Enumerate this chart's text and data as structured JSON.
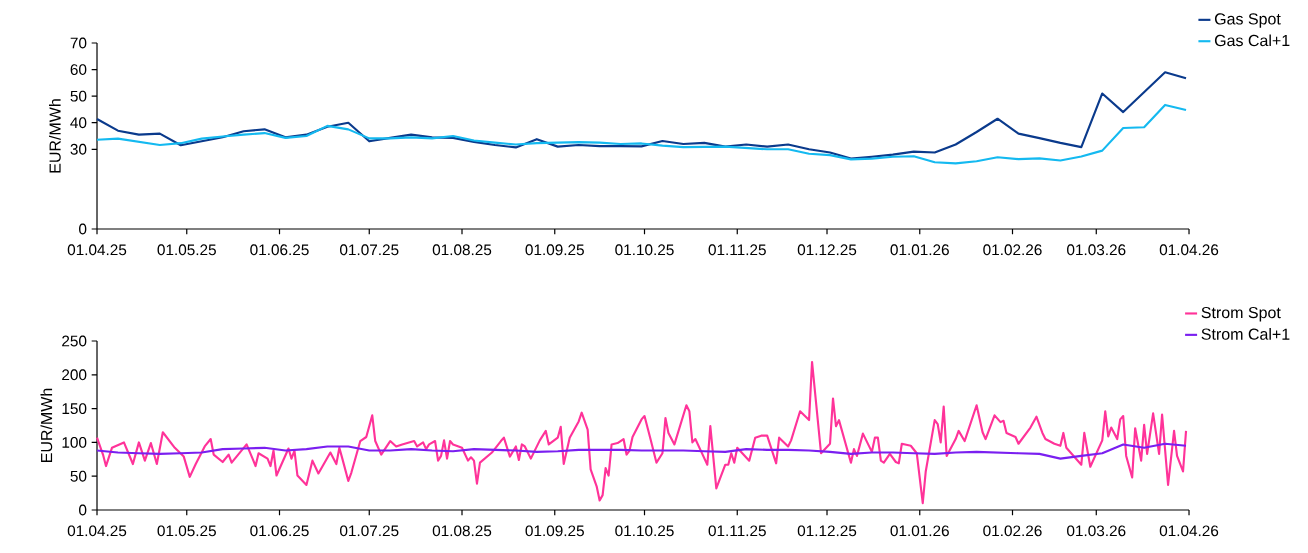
{
  "chart_data": [
    {
      "type": "line",
      "ylabel": "EUR/MWh",
      "legend": "top right",
      "xlim": [
        "2025-04-01",
        "2026-04-01"
      ],
      "xticks": [
        {
          "value": "2025-04-01",
          "label": "01.04.25"
        },
        {
          "value": "2025-05-01",
          "label": "01.05.25"
        },
        {
          "value": "2025-06-01",
          "label": "01.06.25"
        },
        {
          "value": "2025-07-01",
          "label": "01.07.25"
        },
        {
          "value": "2025-08-01",
          "label": "01.08.25"
        },
        {
          "value": "2025-09-01",
          "label": "01.09.25"
        },
        {
          "value": "2025-10-01",
          "label": "01.10.25"
        },
        {
          "value": "2025-11-01",
          "label": "01.11.25"
        },
        {
          "value": "2025-12-01",
          "label": "01.12.25"
        },
        {
          "value": "2026-01-01",
          "label": "01.01.26"
        },
        {
          "value": "2026-02-01",
          "label": "01.02.26"
        },
        {
          "value": "2026-03-01",
          "label": "01.03.26"
        },
        {
          "value": "2026-04-01",
          "label": "01.04.26"
        }
      ],
      "ylim": [
        0,
        70
      ],
      "yticks": [
        0,
        30,
        40,
        50,
        60,
        70
      ],
      "x": [
        "2025-04-01",
        "2025-04-08",
        "2025-04-15",
        "2025-04-22",
        "2025-04-29",
        "2025-05-06",
        "2025-05-13",
        "2025-05-20",
        "2025-05-27",
        "2025-06-03",
        "2025-06-10",
        "2025-06-17",
        "2025-06-24",
        "2025-07-01",
        "2025-07-08",
        "2025-07-15",
        "2025-07-22",
        "2025-07-29",
        "2025-08-05",
        "2025-08-12",
        "2025-08-19",
        "2025-08-26",
        "2025-09-02",
        "2025-09-09",
        "2025-09-16",
        "2025-09-23",
        "2025-09-30",
        "2025-10-07",
        "2025-10-14",
        "2025-10-21",
        "2025-10-28",
        "2025-11-04",
        "2025-11-11",
        "2025-11-18",
        "2025-11-25",
        "2025-12-02",
        "2025-12-09",
        "2025-12-16",
        "2025-12-23",
        "2025-12-30",
        "2026-01-06",
        "2026-01-13",
        "2026-01-20",
        "2026-01-27",
        "2026-02-03",
        "2026-02-10",
        "2026-02-17",
        "2026-02-24",
        "2026-03-03",
        "2026-03-10",
        "2026-03-17",
        "2026-03-24",
        "2026-03-31"
      ],
      "series": [
        {
          "name": "Gas Spot",
          "color": "#0a3a8c",
          "values": [
            41.4,
            37,
            35.5,
            35.9,
            31.5,
            33,
            34.5,
            36.8,
            37.5,
            34.5,
            35.5,
            38.5,
            40,
            33,
            34.3,
            35.5,
            34.5,
            34.3,
            32.8,
            31.6,
            30.7,
            33.8,
            31,
            31.6,
            31.2,
            31.2,
            31.1,
            33.1,
            32,
            32.4,
            31,
            31.8,
            31,
            31.8,
            30,
            28.8,
            26.5,
            27.2,
            28,
            29.1,
            28.8,
            31.8,
            36.5,
            41.5,
            35.9,
            34.2,
            32.4,
            30.8,
            51,
            44,
            51.5,
            59,
            56.7
          ]
        },
        {
          "name": "Gas Cal+1",
          "color": "#14b9f0",
          "values": [
            33.6,
            34.0,
            32.8,
            31.6,
            32.3,
            34.0,
            34.8,
            35.5,
            36.1,
            34.3,
            35.0,
            38.8,
            37.5,
            34.1,
            34.1,
            34.5,
            34.1,
            35.0,
            33.3,
            32.5,
            31.8,
            32.3,
            32.5,
            32.7,
            32.5,
            32.0,
            32.2,
            31.4,
            30.8,
            30.9,
            31.0,
            30.5,
            30.0,
            30.0,
            28.3,
            27.8,
            26.2,
            26.5,
            27.2,
            27.4,
            25.1,
            24.7,
            25.5,
            27.0,
            26.3,
            26.6,
            25.8,
            27.3,
            29.5,
            38.0,
            38.3,
            46.7,
            44.8
          ]
        }
      ]
    },
    {
      "type": "line",
      "ylabel": "EUR/MWh",
      "legend": "top right",
      "xlim": [
        "2025-04-01",
        "2026-04-01"
      ],
      "xticks": [
        {
          "value": "2025-04-01",
          "label": "01.04.25"
        },
        {
          "value": "2025-05-01",
          "label": "01.05.25"
        },
        {
          "value": "2025-06-01",
          "label": "01.06.25"
        },
        {
          "value": "2025-07-01",
          "label": "01.07.25"
        },
        {
          "value": "2025-08-01",
          "label": "01.08.25"
        },
        {
          "value": "2025-09-01",
          "label": "01.09.25"
        },
        {
          "value": "2025-10-01",
          "label": "01.10.25"
        },
        {
          "value": "2025-11-01",
          "label": "01.11.25"
        },
        {
          "value": "2025-12-01",
          "label": "01.12.25"
        },
        {
          "value": "2026-01-01",
          "label": "01.01.26"
        },
        {
          "value": "2026-02-01",
          "label": "01.02.26"
        },
        {
          "value": "2026-03-01",
          "label": "01.03.26"
        },
        {
          "value": "2026-04-01",
          "label": "01.04.26"
        }
      ],
      "ylim": [
        0,
        250
      ],
      "yticks": [
        0,
        50,
        100,
        150,
        200,
        250
      ],
      "x": [
        "2025-04-01",
        "2025-04-08",
        "2025-04-15",
        "2025-04-22",
        "2025-04-29",
        "2025-05-06",
        "2025-05-13",
        "2025-05-20",
        "2025-05-27",
        "2025-06-03",
        "2025-06-10",
        "2025-06-17",
        "2025-06-24",
        "2025-07-01",
        "2025-07-08",
        "2025-07-15",
        "2025-07-22",
        "2025-07-29",
        "2025-08-05",
        "2025-08-12",
        "2025-08-19",
        "2025-08-26",
        "2025-09-02",
        "2025-09-09",
        "2025-09-16",
        "2025-09-23",
        "2025-09-30",
        "2025-10-07",
        "2025-10-14",
        "2025-10-21",
        "2025-10-28",
        "2025-11-04",
        "2025-11-11",
        "2025-11-18",
        "2025-11-25",
        "2025-12-02",
        "2025-12-09",
        "2025-12-16",
        "2025-12-23",
        "2025-12-30",
        "2026-01-06",
        "2026-01-13",
        "2026-01-20",
        "2026-01-27",
        "2026-02-03",
        "2026-02-10",
        "2026-02-17",
        "2026-02-24",
        "2026-03-03",
        "2026-03-10",
        "2026-03-17",
        "2026-03-24",
        "2026-03-31"
      ],
      "series": [
        {
          "name": "Strom Spot",
          "color": "#ff3399",
          "x": [
            "2025-04-01",
            "2025-04-03",
            "2025-04-04",
            "2025-04-06",
            "2025-04-10",
            "2025-04-13",
            "2025-04-15",
            "2025-04-17",
            "2025-04-19",
            "2025-04-21",
            "2025-04-23",
            "2025-04-27",
            "2025-04-30",
            "2025-05-02",
            "2025-05-04",
            "2025-05-07",
            "2025-05-09",
            "2025-05-10",
            "2025-05-13",
            "2025-05-15",
            "2025-05-16",
            "2025-05-21",
            "2025-05-23",
            "2025-05-24",
            "2025-05-25",
            "2025-05-28",
            "2025-05-29",
            "2025-05-30",
            "2025-05-31",
            "2025-06-04",
            "2025-06-05",
            "2025-06-06",
            "2025-06-07",
            "2025-06-10",
            "2025-06-12",
            "2025-06-14",
            "2025-06-18",
            "2025-06-20",
            "2025-06-21",
            "2025-06-22",
            "2025-06-24",
            "2025-06-25",
            "2025-06-28",
            "2025-06-30",
            "2025-07-02",
            "2025-07-03",
            "2025-07-05",
            "2025-07-08",
            "2025-07-10",
            "2025-07-12",
            "2025-07-16",
            "2025-07-17",
            "2025-07-19",
            "2025-07-20",
            "2025-07-21",
            "2025-07-23",
            "2025-07-24",
            "2025-07-25",
            "2025-07-26",
            "2025-07-27",
            "2025-07-28",
            "2025-07-29",
            "2025-08-01",
            "2025-08-03",
            "2025-08-04",
            "2025-08-05",
            "2025-08-06",
            "2025-08-07",
            "2025-08-11",
            "2025-08-14",
            "2025-08-15",
            "2025-08-17",
            "2025-08-19",
            "2025-08-20",
            "2025-08-21",
            "2025-08-22",
            "2025-08-24",
            "2025-08-27",
            "2025-08-29",
            "2025-08-30",
            "2025-09-02",
            "2025-09-03",
            "2025-09-04",
            "2025-09-06",
            "2025-09-09",
            "2025-09-10",
            "2025-09-12",
            "2025-09-13",
            "2025-09-15",
            "2025-09-16",
            "2025-09-17",
            "2025-09-18",
            "2025-09-19",
            "2025-09-20",
            "2025-09-22",
            "2025-09-24",
            "2025-09-25",
            "2025-09-26",
            "2025-09-27",
            "2025-09-30",
            "2025-10-01",
            "2025-10-03",
            "2025-10-05",
            "2025-10-07",
            "2025-10-08",
            "2025-10-09",
            "2025-10-11",
            "2025-10-15",
            "2025-10-16",
            "2025-10-17",
            "2025-10-18",
            "2025-10-20",
            "2025-10-22",
            "2025-10-23",
            "2025-10-25",
            "2025-10-28",
            "2025-10-29",
            "2025-10-30",
            "2025-10-31",
            "2025-11-01",
            "2025-11-05",
            "2025-11-07",
            "2025-11-09",
            "2025-11-11",
            "2025-11-14",
            "2025-11-15",
            "2025-11-18",
            "2025-11-19",
            "2025-11-22",
            "2025-11-25",
            "2025-11-26",
            "2025-11-29",
            "2025-12-02",
            "2025-12-03",
            "2025-12-04",
            "2025-12-05",
            "2025-12-09",
            "2025-12-10",
            "2025-12-11",
            "2025-12-13",
            "2025-12-16",
            "2025-12-17",
            "2025-12-18",
            "2025-12-19",
            "2025-12-20",
            "2025-12-22",
            "2025-12-24",
            "2025-12-25",
            "2025-12-26",
            "2025-12-29",
            "2025-12-31",
            "2026-01-02",
            "2026-01-03",
            "2026-01-06",
            "2026-01-07",
            "2026-01-08",
            "2026-01-09",
            "2026-01-10",
            "2026-01-13",
            "2026-01-14",
            "2026-01-16",
            "2026-01-20",
            "2026-01-22",
            "2026-01-23",
            "2026-01-26",
            "2026-01-28",
            "2026-01-29",
            "2026-01-30",
            "2026-02-02",
            "2026-02-03",
            "2026-02-07",
            "2026-02-09",
            "2026-02-11",
            "2026-02-12",
            "2026-02-15",
            "2026-02-17",
            "2026-02-18",
            "2026-02-19",
            "2026-02-24",
            "2026-02-25",
            "2026-02-27",
            "2026-03-03",
            "2026-03-04",
            "2026-03-05",
            "2026-03-06",
            "2026-03-08",
            "2026-03-09",
            "2026-03-10",
            "2026-03-11",
            "2026-03-13",
            "2026-03-14",
            "2026-03-16",
            "2026-03-17",
            "2026-03-18",
            "2026-03-20",
            "2026-03-22",
            "2026-03-23",
            "2026-03-25",
            "2026-03-27",
            "2026-03-28",
            "2026-03-30",
            "2026-03-31"
          ],
          "values": [
            107,
            82,
            65,
            92,
            100,
            68,
            100,
            73,
            99,
            68,
            115,
            92,
            79,
            49,
            68,
            94,
            105,
            82,
            71,
            82,
            70,
            97,
            76,
            65,
            84,
            76,
            65,
            88,
            51,
            91,
            76,
            88,
            51,
            37,
            73,
            54,
            85,
            68,
            92,
            76,
            43,
            55,
            102,
            108,
            140,
            102,
            82,
            102,
            94,
            97,
            102,
            94,
            100,
            90,
            97,
            102,
            73,
            80,
            103,
            76,
            102,
            97,
            92,
            73,
            78,
            73,
            39,
            70,
            85,
            102,
            107,
            79,
            94,
            74,
            97,
            94,
            76,
            103,
            117,
            97,
            107,
            123,
            68,
            107,
            131,
            144,
            119,
            60,
            35,
            14,
            22,
            62,
            51,
            97,
            99,
            105,
            82,
            88,
            108,
            134,
            139,
            105,
            70,
            84,
            136,
            114,
            97,
            155,
            146,
            100,
            105,
            86,
            67,
            124,
            32,
            67,
            67,
            84,
            70,
            92,
            73,
            107,
            110,
            110,
            69,
            107,
            94,
            103,
            146,
            133,
            219,
            84,
            98,
            165,
            124,
            133,
            70,
            90,
            80,
            113,
            86,
            107,
            107,
            73,
            70,
            83,
            71,
            69,
            98,
            95,
            84,
            10,
            57,
            133,
            127,
            100,
            153,
            80,
            105,
            117,
            102,
            155,
            115,
            105,
            140,
            130,
            132,
            114,
            108,
            98,
            122,
            138,
            114,
            105,
            98,
            95,
            114,
            92,
            67,
            114,
            64,
            103,
            146,
            109,
            122,
            105,
            134,
            139,
            80,
            48,
            121,
            73,
            126,
            83,
            143,
            83,
            141,
            37,
            117,
            80,
            57,
            117
          ]
        },
        {
          "name": "Strom Cal+1",
          "color": "#7a1ff0",
          "values": [
            88,
            85,
            84,
            83,
            84,
            85,
            90,
            91,
            92,
            88,
            90,
            94,
            94,
            88,
            88,
            90,
            88,
            87,
            90,
            89,
            88,
            86,
            87,
            89,
            89,
            89,
            88,
            88,
            88,
            87,
            86,
            90,
            89,
            89,
            88,
            86,
            83,
            85,
            85,
            84,
            83,
            85,
            86,
            85,
            84,
            83,
            76,
            80,
            84,
            97,
            92,
            98,
            95
          ]
        }
      ]
    }
  ]
}
